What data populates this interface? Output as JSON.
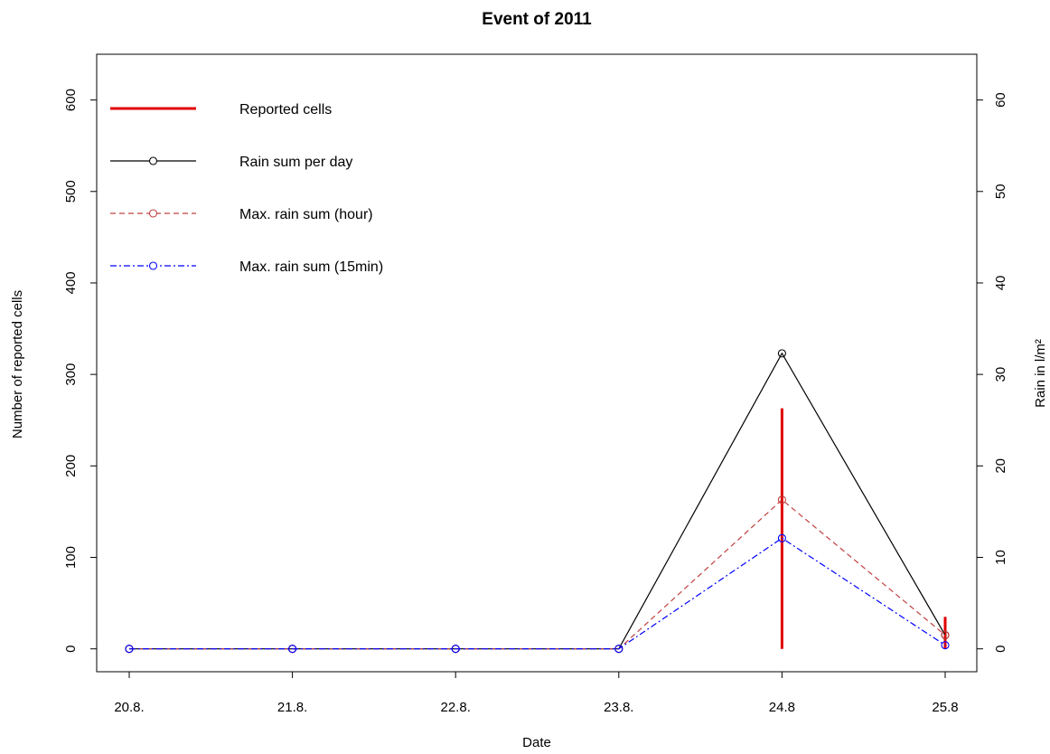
{
  "chart_data": {
    "type": "line",
    "title": "Event of 2011",
    "xlabel": "Date",
    "ylabel_left": "Number of reported cells",
    "ylabel_right": "Rain in l/m²",
    "categories": [
      "20.8.",
      "21.8.",
      "22.8.",
      "23.8.",
      "24.8",
      "25.8"
    ],
    "ylim_left": [
      -25,
      650
    ],
    "yticks_left": [
      0,
      100,
      200,
      300,
      400,
      500,
      600
    ],
    "ylim_right": [
      -2.5,
      65
    ],
    "yticks_right": [
      0,
      10,
      20,
      30,
      40,
      50,
      60
    ],
    "grid": false,
    "legend_position": "top-left",
    "series": [
      {
        "name": "Reported cells",
        "style": "vertical-bars",
        "axis": "left",
        "color": "#e00000",
        "values": [
          0,
          0,
          0,
          0,
          263,
          35
        ]
      },
      {
        "name": "Rain sum per day",
        "style": "solid",
        "axis": "right",
        "color": "#000000",
        "values": [
          0,
          0,
          0,
          0,
          32.3,
          1.5
        ]
      },
      {
        "name": "Max. rain sum (hour)",
        "style": "dashed",
        "axis": "right",
        "color": "#c04040",
        "values": [
          0,
          0,
          0,
          0,
          16.3,
          1.5
        ]
      },
      {
        "name": "Max. rain sum (15min)",
        "style": "dash-dot",
        "axis": "right",
        "color": "#0000ff",
        "values": [
          0,
          0,
          0,
          0,
          12.1,
          0.4
        ]
      }
    ]
  }
}
